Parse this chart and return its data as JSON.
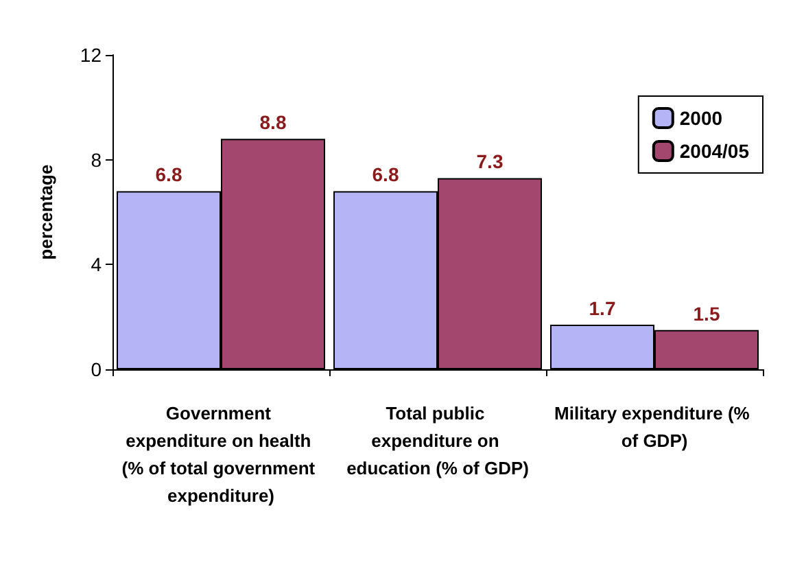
{
  "chart_data": {
    "type": "bar",
    "ylabel": "percentage",
    "categories": [
      "Government expenditure on health (% of total government expenditure)",
      "Total public expenditure on education (% of GDP)",
      "Military expenditure (% of GDP)"
    ],
    "series": [
      {
        "name": "2000",
        "color": "#b4b4f6",
        "values": [
          6.8,
          6.8,
          1.7
        ]
      },
      {
        "name": "2004/05",
        "color": "#a4476f",
        "values": [
          8.8,
          7.3,
          1.5
        ]
      }
    ],
    "ylim": [
      0,
      12
    ],
    "yticks": [
      0,
      4,
      8,
      12
    ],
    "grid": false,
    "legend": "top right",
    "data_labels": true
  }
}
